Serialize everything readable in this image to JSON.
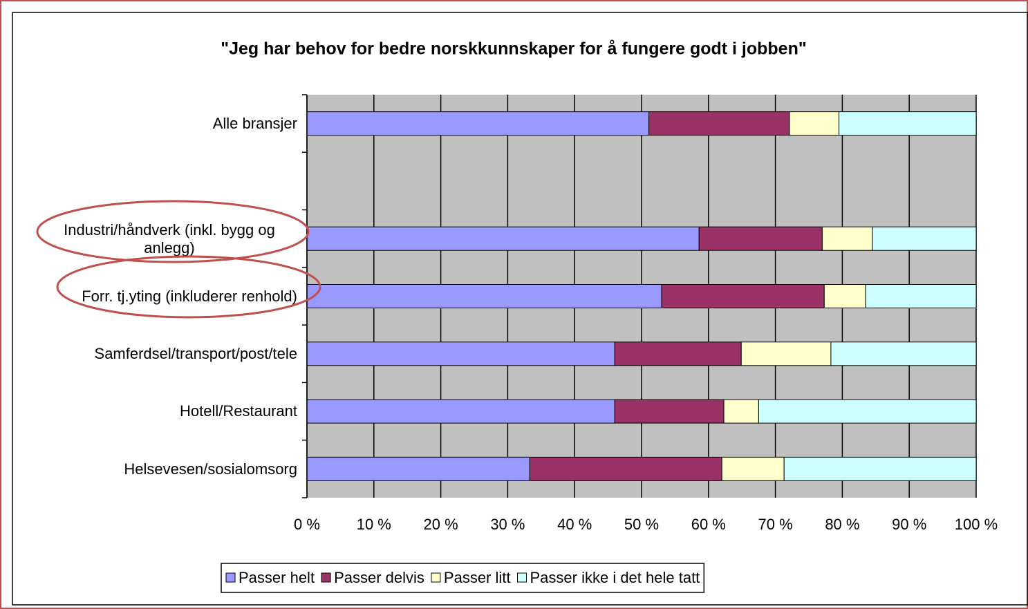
{
  "chart_data": {
    "type": "stacked_bar_horizontal",
    "title": "\"Jeg har behov for bedre norskkunnskaper for å fungere godt i jobben\"",
    "categories": [
      "Alle bransjer",
      null,
      "Industri/håndverk (inkl. bygg og anlegg)",
      "Forr. tj.yting (inkluderer renhold)",
      "Samferdsel/transport/post/tele",
      "Hotell/Restaurant",
      "Helsevesen/sosialomsorg"
    ],
    "series": [
      {
        "name": "Passer helt",
        "color": "#9999ff",
        "values": [
          51.1,
          null,
          58.6,
          53.0,
          46.0,
          46.0,
          33.3
        ]
      },
      {
        "name": "Passer delvis",
        "color": "#993366",
        "values": [
          21.0,
          null,
          18.4,
          24.3,
          18.9,
          16.3,
          28.7
        ]
      },
      {
        "name": "Passer litt",
        "color": "#ffffcc",
        "values": [
          7.4,
          null,
          7.5,
          6.2,
          13.4,
          5.2,
          9.3
        ]
      },
      {
        "name": "Passer ikke i det hele tatt",
        "color": "#ccffff",
        "values": [
          20.5,
          null,
          15.5,
          16.5,
          21.7,
          32.5,
          28.7
        ]
      }
    ],
    "xlim": [
      0,
      100
    ],
    "xticks": [
      {
        "value": 0,
        "label": "0 %"
      },
      {
        "value": 10,
        "label": "10 %"
      },
      {
        "value": 20,
        "label": "20 %"
      },
      {
        "value": 30,
        "label": "30 %"
      },
      {
        "value": 40,
        "label": "40 %"
      },
      {
        "value": 50,
        "label": "50 %"
      },
      {
        "value": 60,
        "label": "60 %"
      },
      {
        "value": 70,
        "label": "70 %"
      },
      {
        "value": 80,
        "label": "80 %"
      },
      {
        "value": 90,
        "label": "90 %"
      },
      {
        "value": 100,
        "label": "100 %"
      }
    ],
    "grid": true,
    "plot_background": "#c0c0c0",
    "legend": "bottom"
  }
}
